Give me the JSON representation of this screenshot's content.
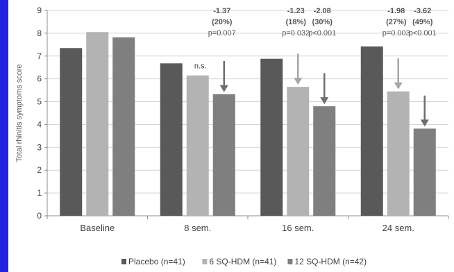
{
  "frame": {
    "accent_color": "#2323e0"
  },
  "chart_data": {
    "type": "bar",
    "title": "",
    "xlabel": "",
    "ylabel": "Total rhinitis symptoms score",
    "ylim": [
      0,
      9
    ],
    "yticks": [
      "0",
      "1",
      "2",
      "3",
      "4",
      "5",
      "6",
      "7",
      "8",
      "9"
    ],
    "grid": true,
    "legend_position": "bottom",
    "categories": [
      "Baseline",
      "8 sem.",
      "16 sem.",
      "24 sem."
    ],
    "series": [
      {
        "name": "Placebo (n=41)",
        "color": "#595959",
        "values": [
          7.35,
          6.68,
          6.88,
          7.42
        ]
      },
      {
        "name": "6 SQ-HDM (n=41)",
        "color": "#b3b3b3",
        "values": [
          8.05,
          6.15,
          5.65,
          5.45
        ]
      },
      {
        "name": "12 SQ-HDM (n=42)",
        "color": "#7f7f7f",
        "values": [
          7.82,
          5.33,
          4.8,
          3.82
        ]
      }
    ],
    "annotations": [
      {
        "category": 1,
        "series": 1,
        "lines": [
          "n.s."
        ],
        "arrow": false
      },
      {
        "category": 1,
        "series": 2,
        "lines": [
          "-1.37",
          "(20%)",
          "p=0.007"
        ],
        "arrow": true
      },
      {
        "category": 2,
        "series": 1,
        "lines": [
          "-1.23",
          "(18%)",
          "p=0.032"
        ],
        "arrow": true
      },
      {
        "category": 2,
        "series": 2,
        "lines": [
          "-2.08",
          "(30%)",
          "p<0.001"
        ],
        "arrow": true
      },
      {
        "category": 3,
        "series": 1,
        "lines": [
          "-1.98",
          "(27%)",
          "p=0.003"
        ],
        "arrow": true
      },
      {
        "category": 3,
        "series": 2,
        "lines": [
          "-3.62",
          "(49%)",
          "p<0.001"
        ],
        "arrow": true
      }
    ]
  }
}
